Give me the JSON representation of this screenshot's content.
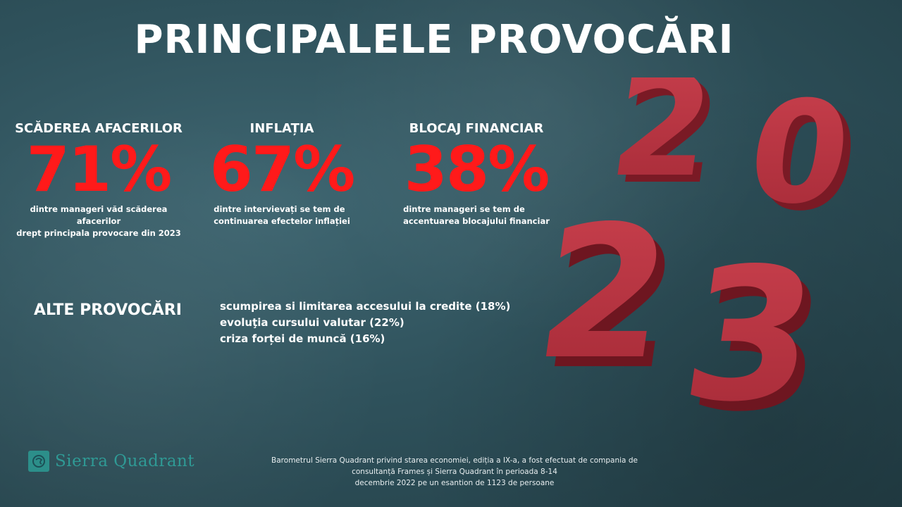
{
  "title": "PRINCIPALELE PROVOCĂRI",
  "stats": [
    {
      "heading": "SCĂDEREA AFACERILOR",
      "value": "71%",
      "description_lines": [
        "dintre manageri văd scăderea afacerilor",
        "drept principala provocare din 2023"
      ]
    },
    {
      "heading": "INFLAȚIA",
      "value": "67%",
      "description_lines": [
        "dintre intervievați se tem de",
        "continuarea efectelor inflației"
      ]
    },
    {
      "heading": "BLOCAJ FINANCIAR",
      "value": "38%",
      "description_lines": [
        "dintre manageri se tem de",
        "accentuarea blocajului financiar"
      ]
    }
  ],
  "other": {
    "heading": "ALTE PROVOCĂRI",
    "items": [
      "scumpirea si limitarea accesului la credite (18%)",
      "evoluţia cursului valutar (22%)",
      "criza forței de muncă (16%)"
    ]
  },
  "logo": {
    "text": "Sierra Quadrant",
    "color": "#2f9a95"
  },
  "footer": {
    "lines": [
      "Barometrul Sierra Quadrant privind starea economiei, ediția a IX-a, a fost efectuat de compania de consultanță Frames și Sierra Quadrant în perioada 8-14",
      "decembrie 2022 pe un esantion de 1123 de persoane"
    ]
  },
  "decoration": {
    "year_digits": [
      "2",
      "0",
      "2",
      "3"
    ],
    "digit_color": "#b3323f"
  },
  "colors": {
    "accent": "#ff1a1a",
    "background": "#2f525c"
  }
}
